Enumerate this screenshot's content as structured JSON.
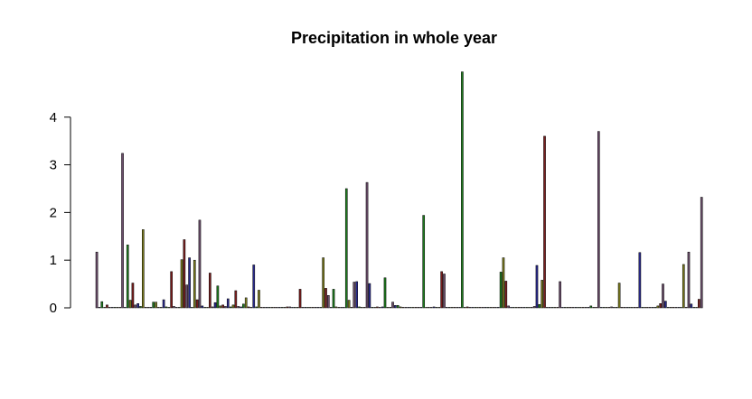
{
  "chart_data": {
    "type": "bar",
    "title": "Precipitation in whole year",
    "xlabel": "",
    "ylabel": "",
    "ylim": [
      0,
      4.98
    ],
    "y_ticks": [
      0,
      1,
      2,
      3,
      4
    ],
    "grid": false,
    "legend": "none",
    "values": [
      1.17,
      0,
      0.13,
      0,
      0.06,
      0,
      0,
      0,
      0,
      0,
      3.24,
      0,
      1.32,
      0.16,
      0.52,
      0.06,
      0.09,
      0.03,
      1.64,
      0,
      0,
      0,
      0.12,
      0.12,
      0,
      0,
      0.17,
      0.02,
      0,
      0.76,
      0.03,
      0,
      0,
      1.01,
      1.43,
      0.48,
      1.05,
      0,
      1.0,
      0.17,
      1.84,
      0.04,
      0,
      0,
      0.73,
      0.02,
      0.11,
      0.46,
      0.04,
      0.06,
      0.03,
      0.19,
      0.02,
      0.06,
      0.36,
      0.03,
      0.02,
      0.08,
      0.21,
      0.02,
      0,
      0.9,
      0.02,
      0.37,
      0,
      0,
      0,
      0,
      0,
      0,
      0,
      0,
      0,
      0,
      0.02,
      0.02,
      0.01,
      0,
      0,
      0.39,
      0,
      0,
      0,
      0,
      0,
      0,
      0,
      0,
      1.05,
      0.41,
      0.26,
      0,
      0.39,
      0.02,
      0,
      0,
      0,
      2.5,
      0.16,
      0,
      0.54,
      0.55,
      0.02,
      0,
      0,
      2.63,
      0.51,
      0,
      0,
      0.02,
      0,
      0.02,
      0.63,
      0,
      0,
      0.12,
      0.05,
      0.05,
      0.02,
      0,
      0,
      0,
      0,
      0,
      0,
      0,
      0,
      1.94,
      0,
      0,
      0,
      0.02,
      0,
      0,
      0.76,
      0.71,
      0,
      0,
      0,
      0,
      0,
      0,
      4.95,
      0,
      0.02,
      0,
      0,
      0,
      0,
      0,
      0,
      0,
      0,
      0,
      0,
      0,
      0,
      0.75,
      1.05,
      0.56,
      0.04,
      0,
      0,
      0,
      0,
      0,
      0,
      0,
      0,
      0,
      0.03,
      0.89,
      0.07,
      0.58,
      3.6,
      0,
      0,
      0,
      0,
      0,
      0.55,
      0,
      0,
      0,
      0,
      0,
      0,
      0,
      0,
      0,
      0,
      0,
      0.04,
      0,
      0,
      3.7,
      0,
      0,
      0,
      0,
      0.02,
      0,
      0,
      0.52,
      0,
      0,
      0,
      0,
      0,
      0,
      0,
      1.16,
      0,
      0,
      0,
      0,
      0,
      0,
      0.04,
      0.09,
      0.5,
      0.14,
      0,
      0,
      0,
      0,
      0,
      0,
      0.91,
      0,
      1.17,
      0.08,
      0,
      0,
      0.18,
      2.32
    ],
    "colors": [
      "#6b4e6b",
      "#2a2a8c",
      "#1f7a1f",
      "#7a7a1f",
      "#7a1f1f"
    ]
  }
}
